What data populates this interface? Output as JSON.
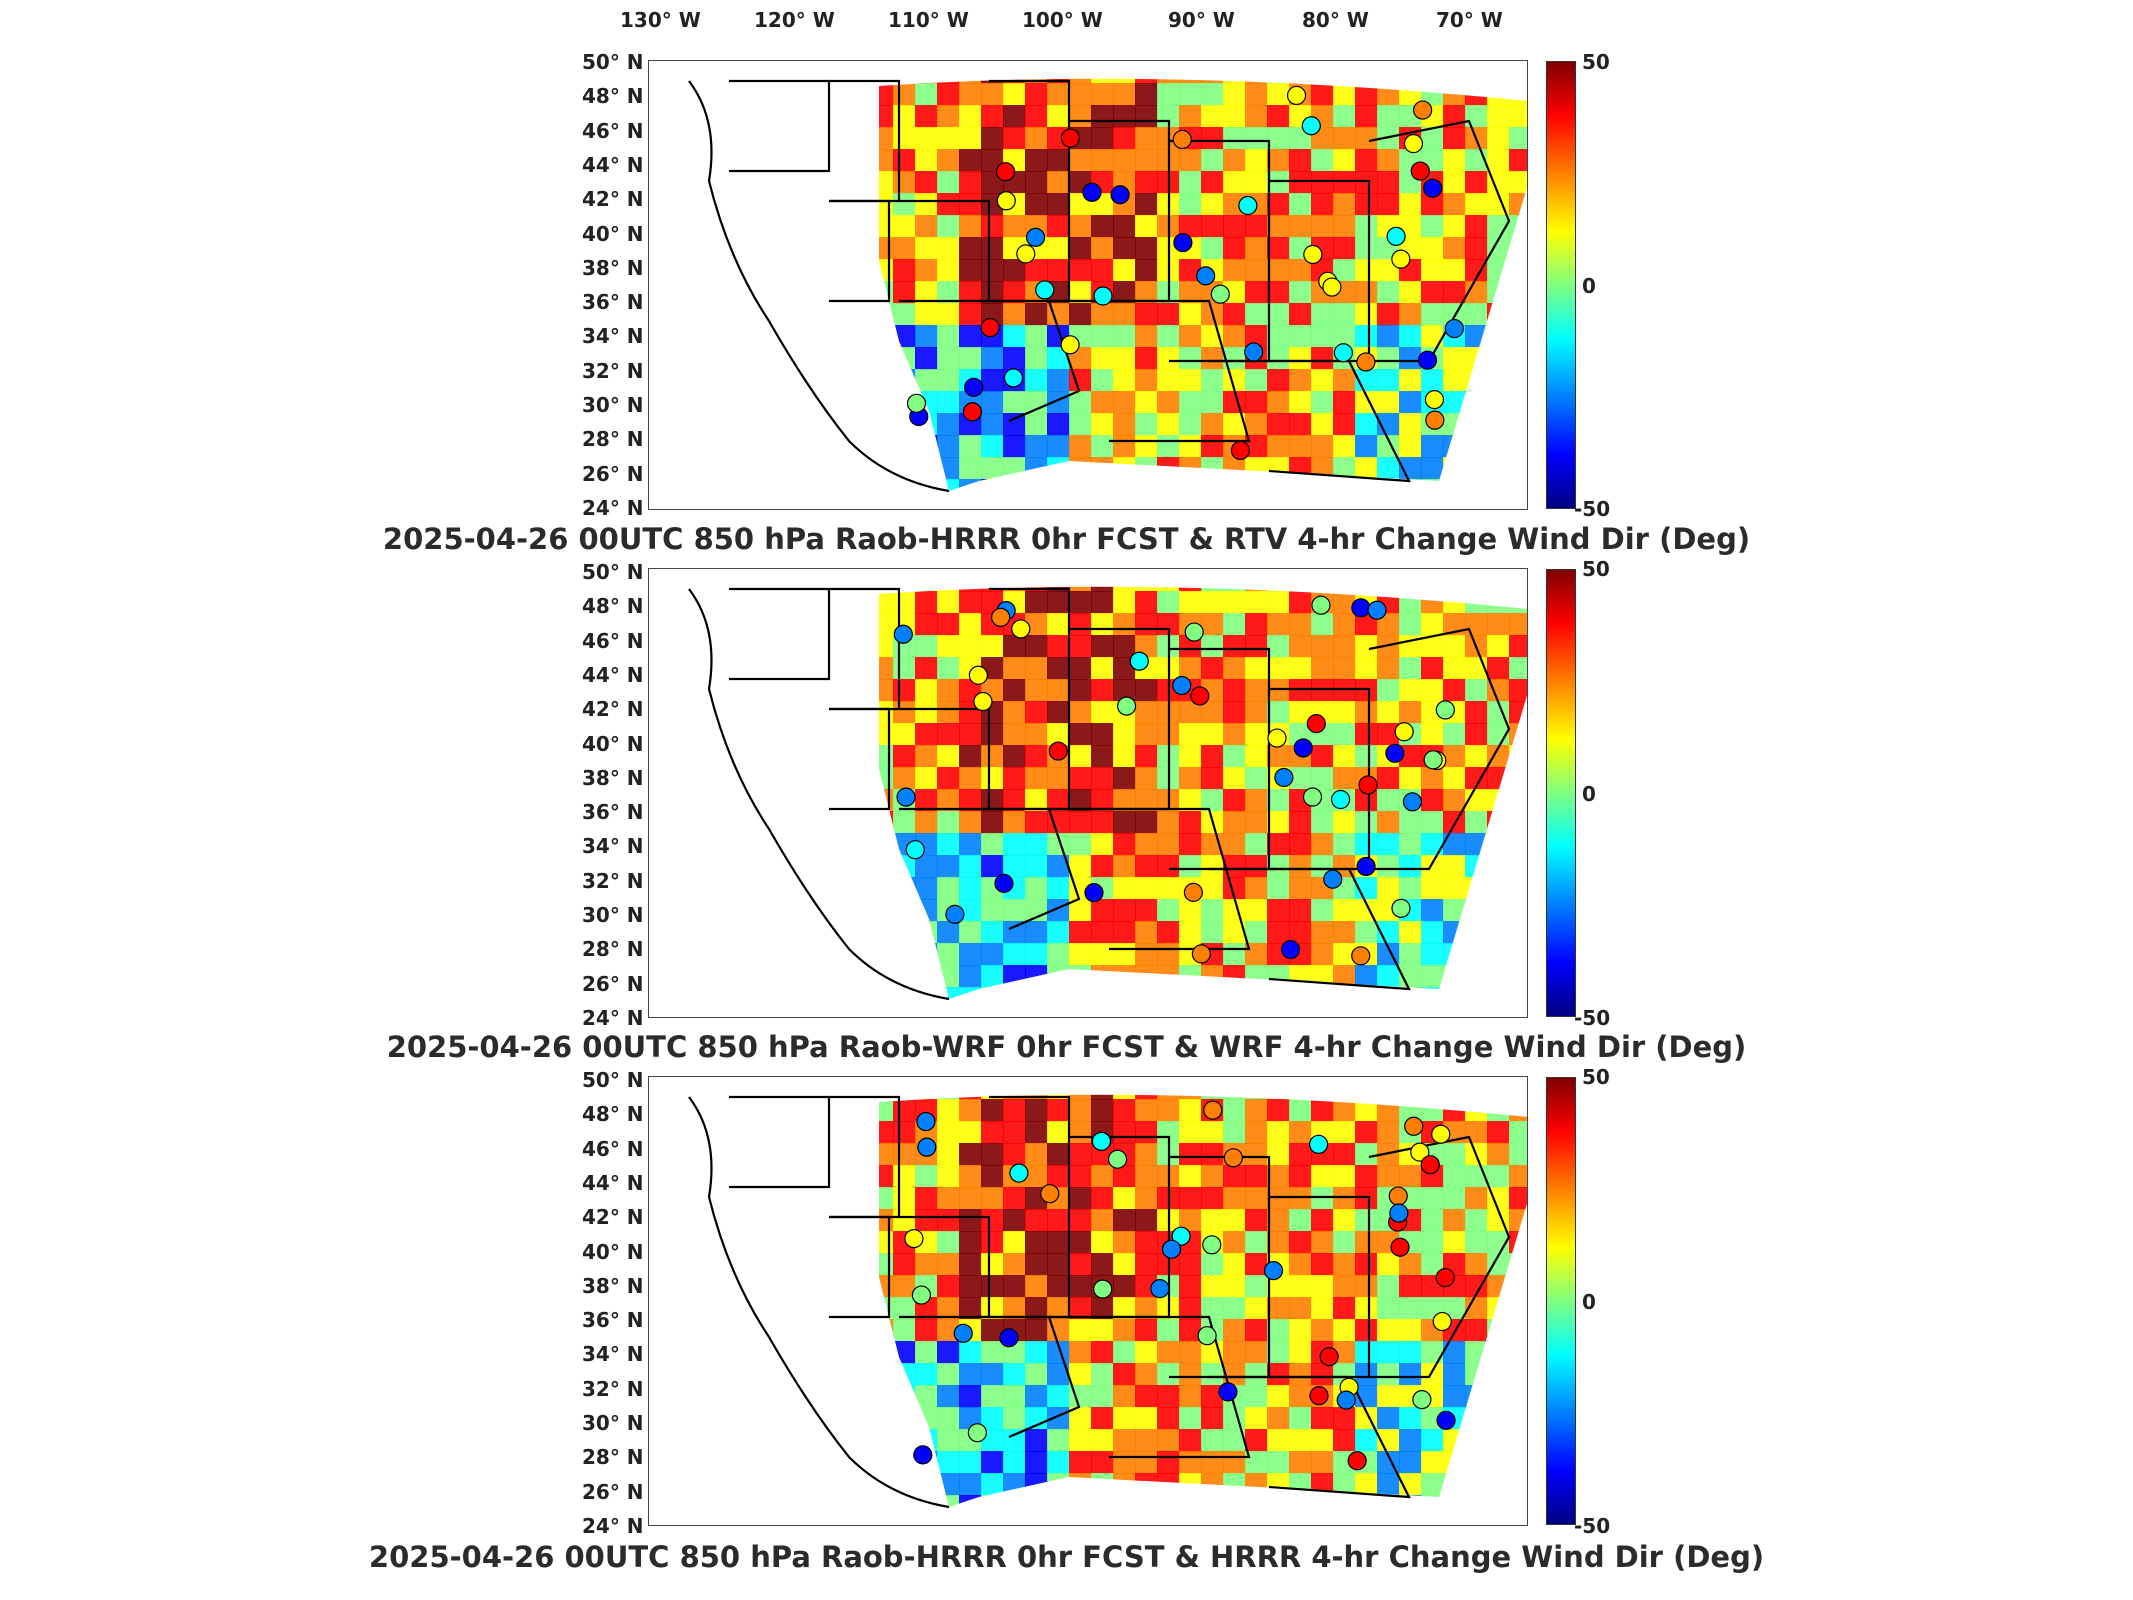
{
  "longitude_labels": [
    "130° W",
    "120° W",
    "110° W",
    "100° W",
    "90° W",
    "80° W",
    "70° W"
  ],
  "latitude_labels": [
    "50° N",
    "48° N",
    "46° N",
    "44° N",
    "42° N",
    "40° N",
    "38° N",
    "36° N",
    "34° N",
    "32° N",
    "30° N",
    "28° N",
    "26° N",
    "24° N"
  ],
  "colorbar": {
    "max_label": "50",
    "mid_label": "0",
    "min_label": "-50",
    "min": -50,
    "max": 50,
    "colors": [
      "#800000",
      "#ff0000",
      "#ff8000",
      "#ffff00",
      "#80ff80",
      "#00ffff",
      "#0080ff",
      "#0000ff",
      "#000080"
    ]
  },
  "panels": [
    {
      "title": "2025-04-26 00UTC 850 hPa Raob-HRRR 0hr FCST & RTV 4-hr Change Wind Dir (Deg)"
    },
    {
      "title": "2025-04-26 00UTC 850 hPa Raob-WRF 0hr FCST & WRF 4-hr Change Wind Dir (Deg)"
    },
    {
      "title": "2025-04-26 00UTC 850 hPa Raob-HRRR 0hr FCST & HRRR 4-hr Change Wind Dir (Deg)"
    }
  ]
}
